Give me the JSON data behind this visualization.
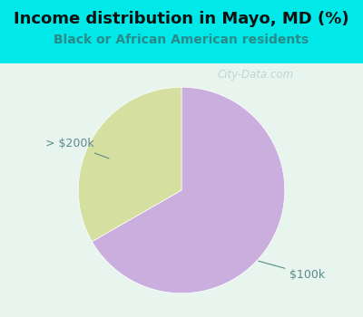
{
  "title": "Income distribution in Mayo, MD (%)",
  "subtitle": "Black or African American residents",
  "slices": [
    66.7,
    33.3
  ],
  "labels": [
    "$100k",
    "> $200k"
  ],
  "colors": [
    "#c9aede",
    "#d4dfa0"
  ],
  "background_top": "#00e8e8",
  "background_chart": "#e8f5ee",
  "title_fontsize": 13,
  "subtitle_fontsize": 10,
  "label_color": "#5a8a8a",
  "label_fontsize": 9,
  "startangle": 90,
  "watermark": "City-Data.com",
  "watermark_color": "#b0c8c8",
  "watermark_alpha": 0.7
}
